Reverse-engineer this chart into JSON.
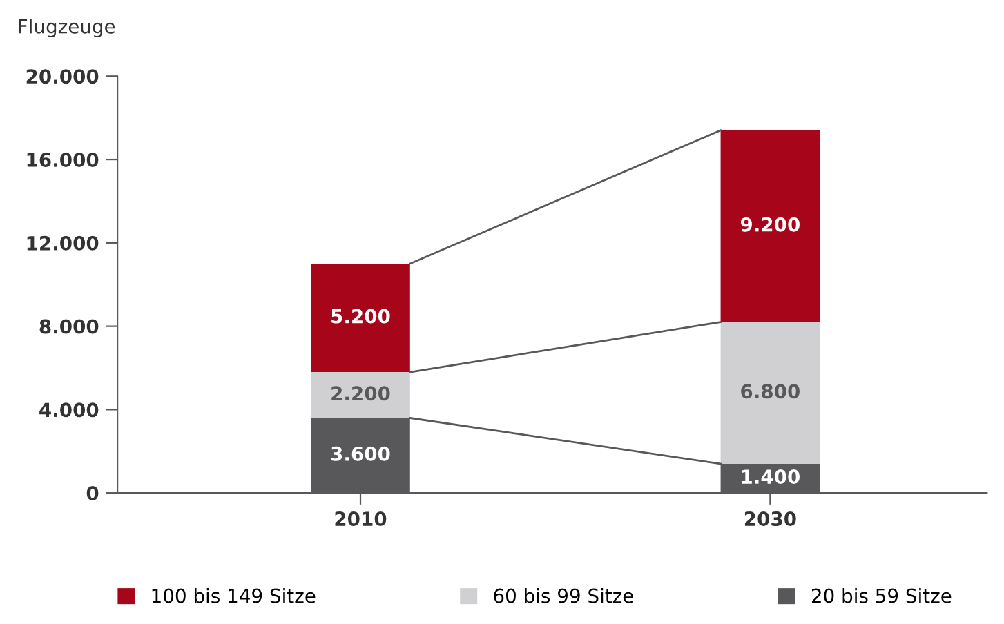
{
  "chart_data": {
    "type": "bar",
    "stacked": true,
    "ylabel": "Flugzeuge",
    "categories": [
      "2010",
      "2030"
    ],
    "series": [
      {
        "name": "20 bis 59 Sitze",
        "color": "#58585a",
        "values": [
          3600,
          1400
        ],
        "value_labels": [
          "3.600",
          "1.400"
        ]
      },
      {
        "name": "60 bis 99 Sitze",
        "color": "#d0d0d2",
        "values": [
          2200,
          6800
        ],
        "value_labels": [
          "2.200",
          "6.800"
        ]
      },
      {
        "name": "100 bis 149 Sitze",
        "color": "#a6051a",
        "values": [
          5200,
          9200
        ],
        "value_labels": [
          "5.200",
          "9.200"
        ]
      }
    ],
    "ylim": [
      0,
      20000
    ],
    "yticks": [
      0,
      {
        "value": 4000,
        "label": "4.000"
      },
      {
        "value": 8000,
        "label": "8.000"
      },
      {
        "value": 12000,
        "label": "12.000"
      },
      {
        "value": 16000,
        "label": "16.000"
      },
      {
        "value": 20000,
        "label": "20.000"
      }
    ],
    "grid": false,
    "legend": "bottom"
  }
}
